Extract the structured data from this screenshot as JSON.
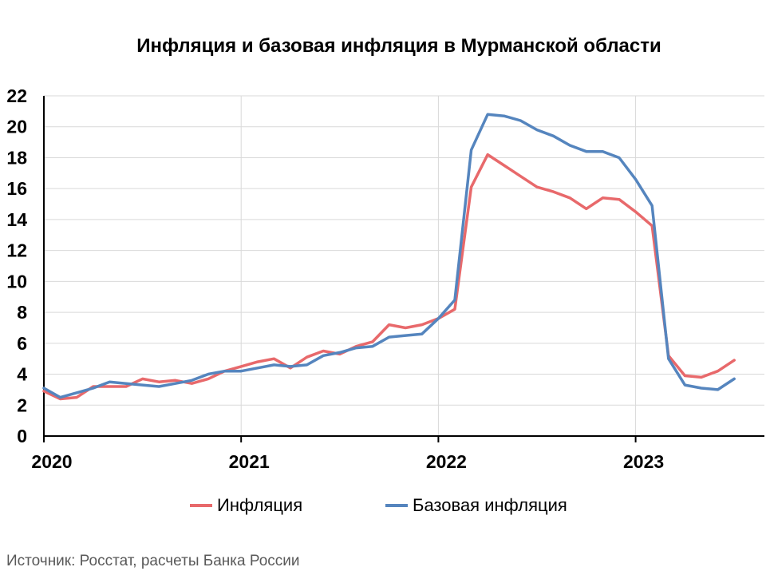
{
  "title": "Инфляция и базовая инфляция в Мурманской области",
  "source": "Источник: Росстат, расчеты Банка России",
  "colors": {
    "inflation": "#E8696B",
    "core": "#5585BE",
    "grid": "#D9D9D9",
    "axis": "#000000"
  },
  "chart_data": {
    "type": "line",
    "title": "Инфляция и базовая инфляция в Мурманской области",
    "xlabel": "",
    "ylabel": "",
    "ylim": [
      0,
      22
    ],
    "yticks": [
      0,
      2,
      4,
      6,
      8,
      10,
      12,
      14,
      16,
      18,
      20,
      22
    ],
    "xlim": [
      "2020-01",
      "2023-08"
    ],
    "xticks": [
      "2020",
      "2021",
      "2022",
      "2023"
    ],
    "grid": true,
    "legend": "bottom",
    "x": [
      "2020-01",
      "2020-02",
      "2020-03",
      "2020-04",
      "2020-05",
      "2020-06",
      "2020-07",
      "2020-08",
      "2020-09",
      "2020-10",
      "2020-11",
      "2020-12",
      "2021-01",
      "2021-02",
      "2021-03",
      "2021-04",
      "2021-05",
      "2021-06",
      "2021-07",
      "2021-08",
      "2021-09",
      "2021-10",
      "2021-11",
      "2021-12",
      "2022-01",
      "2022-02",
      "2022-03",
      "2022-04",
      "2022-05",
      "2022-06",
      "2022-07",
      "2022-08",
      "2022-09",
      "2022-10",
      "2022-11",
      "2022-12",
      "2023-01",
      "2023-02",
      "2023-03",
      "2023-04",
      "2023-05",
      "2023-06",
      "2023-07"
    ],
    "series": [
      {
        "name": "Инфляция",
        "values": [
          2.9,
          2.4,
          2.5,
          3.2,
          3.2,
          3.2,
          3.7,
          3.5,
          3.6,
          3.4,
          3.7,
          4.2,
          4.5,
          4.8,
          5.0,
          4.4,
          5.1,
          5.5,
          5.3,
          5.8,
          6.1,
          7.2,
          7.0,
          7.2,
          7.6,
          8.2,
          16.1,
          18.2,
          17.5,
          16.8,
          16.1,
          15.8,
          15.4,
          14.7,
          15.4,
          15.3,
          14.5,
          13.6,
          5.2,
          3.9,
          3.8,
          4.2,
          4.9
        ]
      },
      {
        "name": "Базовая инфляция",
        "values": [
          3.1,
          2.5,
          2.8,
          3.1,
          3.5,
          3.4,
          3.3,
          3.2,
          3.4,
          3.6,
          4.0,
          4.2,
          4.2,
          4.4,
          4.6,
          4.5,
          4.6,
          5.2,
          5.4,
          5.7,
          5.8,
          6.4,
          6.5,
          6.6,
          7.6,
          8.8,
          18.5,
          20.8,
          20.7,
          20.4,
          19.8,
          19.4,
          18.8,
          18.4,
          18.4,
          18.0,
          16.6,
          14.9,
          5.0,
          3.3,
          3.1,
          3.0,
          3.7
        ]
      }
    ]
  }
}
